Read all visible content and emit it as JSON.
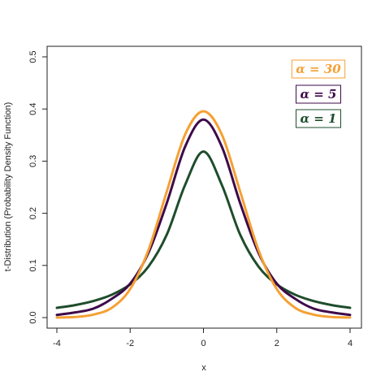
{
  "chart_data": {
    "type": "line",
    "title": "",
    "xlabel": "x",
    "ylabel": "t-Distribution (Probability Density Function)",
    "xlim": [
      -4,
      4
    ],
    "ylim": [
      0,
      0.5
    ],
    "x_ticks": [
      -4,
      -2,
      0,
      2,
      4
    ],
    "y_ticks": [
      0.0,
      0.1,
      0.2,
      0.3,
      0.4,
      0.5
    ],
    "x_tick_labels": [
      "-4",
      "-2",
      "0",
      "2",
      "4"
    ],
    "y_tick_labels": [
      "0.0",
      "0.1",
      "0.2",
      "0.3",
      "0.4",
      "0.5"
    ],
    "grid": false,
    "legend_position": "top-right",
    "x": [
      -4,
      -3.5,
      -3,
      -2.5,
      -2,
      -1.5,
      -1,
      -0.5,
      0,
      0.5,
      1,
      1.5,
      2,
      2.5,
      3,
      3.5,
      4
    ],
    "series": [
      {
        "name": "α = 30",
        "legend_label": "α = 30",
        "color": "#F5A033",
        "values": [
          0.0002,
          0.0011,
          0.0058,
          0.0188,
          0.0548,
          0.1296,
          0.2419,
          0.3513,
          0.3956,
          0.3513,
          0.2419,
          0.1296,
          0.0548,
          0.0188,
          0.0058,
          0.0011,
          0.0002
        ]
      },
      {
        "name": "α = 5",
        "legend_label": "α = 5",
        "color": "#3E0A4A",
        "values": [
          0.0051,
          0.0099,
          0.0173,
          0.0361,
          0.0651,
          0.1245,
          0.2197,
          0.3279,
          0.3796,
          0.3279,
          0.2197,
          0.1245,
          0.0651,
          0.0361,
          0.0173,
          0.0099,
          0.0051
        ]
      },
      {
        "name": "α = 1",
        "legend_label": "α = 1",
        "color": "#1E4D2B",
        "values": [
          0.0187,
          0.024,
          0.0318,
          0.0439,
          0.0637,
          0.0979,
          0.1592,
          0.2546,
          0.3183,
          0.2546,
          0.1592,
          0.0979,
          0.0637,
          0.0439,
          0.0318,
          0.024,
          0.0187
        ]
      }
    ]
  }
}
